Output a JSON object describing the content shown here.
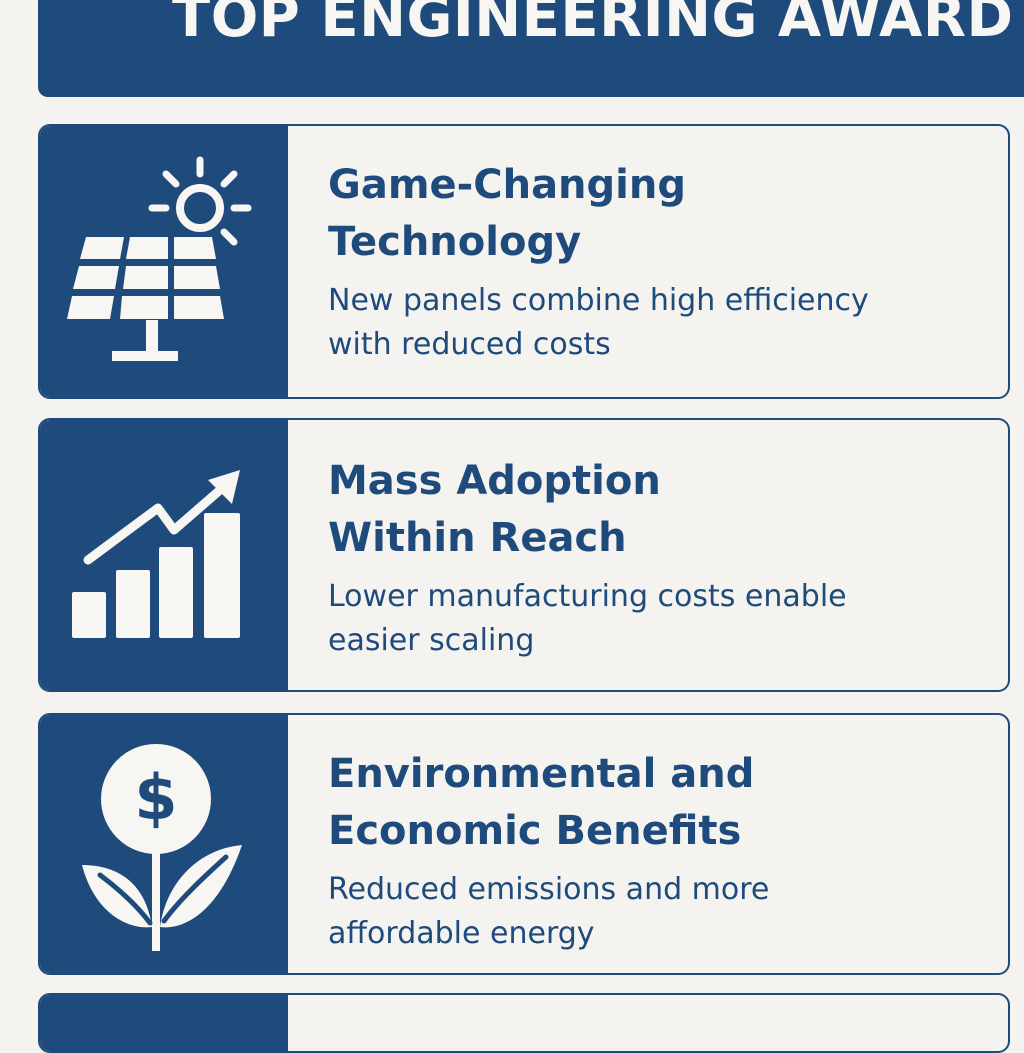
{
  "header": {
    "title": "TOP ENGINEERING AWARD"
  },
  "cards": [
    {
      "title": "Game-Changing Technology",
      "description": "New panels combine high efficiency with reduced costs",
      "icon": "solar-panel-icon"
    },
    {
      "title": "Mass Adoption Within Reach",
      "description": "Lower manufacturing costs enable easier scaling",
      "icon": "growth-chart-icon"
    },
    {
      "title": "Environmental and Economic Benefits",
      "description": "Reduced emissions and more affordable energy",
      "icon": "money-plant-icon"
    }
  ],
  "colors": {
    "primary": "#1e4b7c",
    "background": "#f4f3ef",
    "icon": "#f7f6f2"
  }
}
